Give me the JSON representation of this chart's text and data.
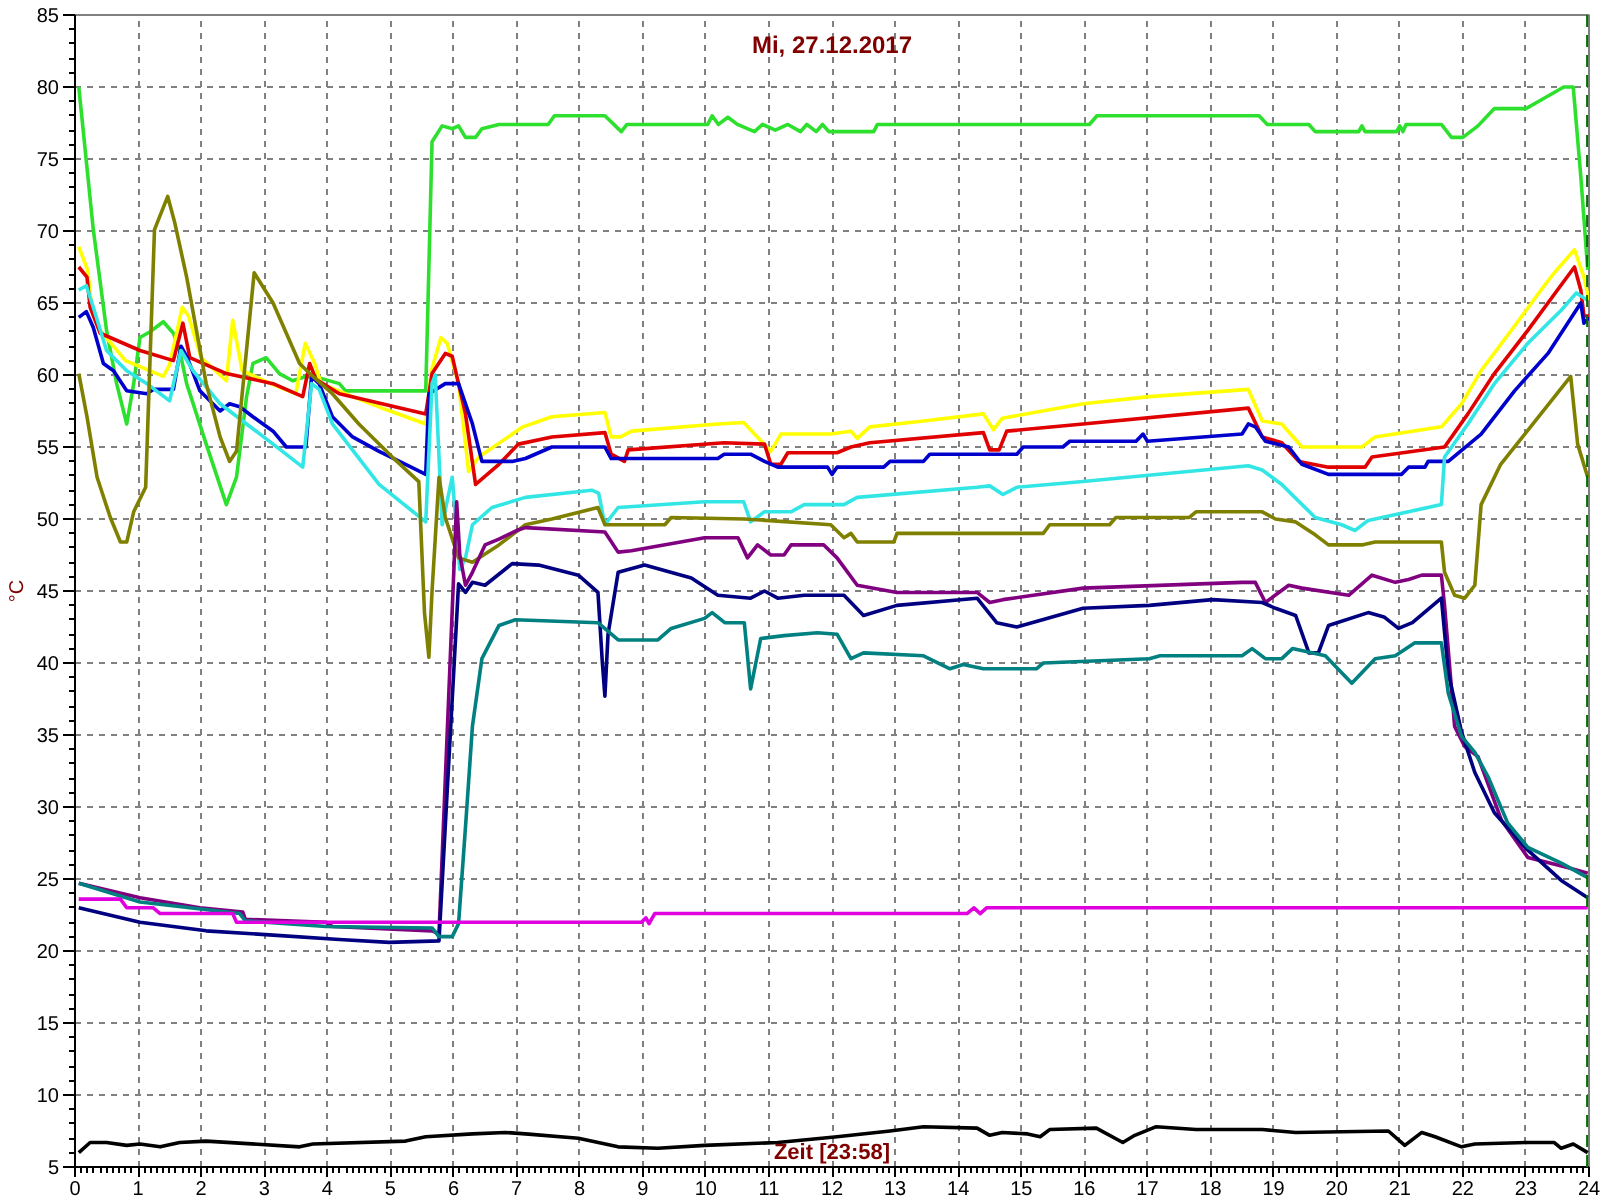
{
  "chart_data": {
    "type": "line",
    "title": "Mi, 27.12.2017",
    "xlabel": "Zeit [23:58]",
    "ylabel": "°C",
    "xlim": [
      0,
      24
    ],
    "ylim": [
      5,
      85
    ],
    "xticks": [
      0,
      1,
      2,
      3,
      4,
      5,
      6,
      7,
      8,
      9,
      10,
      11,
      12,
      13,
      14,
      15,
      16,
      17,
      18,
      19,
      20,
      21,
      22,
      23,
      24
    ],
    "yticks": [
      5,
      10,
      15,
      20,
      25,
      30,
      35,
      40,
      45,
      50,
      55,
      60,
      65,
      70,
      75,
      80,
      85
    ],
    "grid": true,
    "ref_lines": [
      {
        "axis": "x",
        "value": 23.97,
        "color": "#007000",
        "line_style": "dashed"
      }
    ],
    "series": [
      {
        "color": "#2ee02e",
        "x": [
          0.06,
          0.29,
          0.5,
          0.66,
          0.82,
          0.93,
          1.03,
          1.19,
          1.4,
          1.56,
          1.66,
          1.77,
          2.08,
          2.4,
          2.56,
          2.72,
          2.82,
          3.03,
          3.24,
          3.45,
          3.66,
          3.87,
          4.19,
          4.29,
          5.56,
          5.66,
          5.82,
          5.98,
          6.08,
          6.19,
          6.35,
          6.45,
          6.72,
          7.5,
          7.6,
          8.4,
          8.66,
          8.75,
          10.03,
          10.1,
          10.2,
          10.35,
          10.5,
          10.77,
          10.9,
          11.1,
          11.3,
          11.5,
          11.6,
          11.75,
          11.85,
          11.95,
          12.66,
          12.72,
          16.08,
          16.2,
          18.77,
          18.9,
          19.56,
          19.66,
          20.35,
          20.4,
          20.45,
          20.95,
          21.0,
          21.05,
          21.1,
          21.66,
          21.82,
          22.0,
          22.24,
          22.5,
          23.0,
          23.24,
          23.6,
          23.75,
          23.87,
          23.98
        ],
        "values": [
          80,
          70.1,
          63.1,
          59.4,
          56.6,
          59.4,
          62.6,
          63,
          63.7,
          62.9,
          61.7,
          59.4,
          55.2,
          51,
          52.9,
          58.5,
          60.8,
          61.2,
          60.1,
          59.6,
          59.9,
          59.8,
          59.4,
          58.9,
          58.9,
          76.2,
          77.3,
          77.1,
          77.3,
          76.5,
          76.5,
          77.1,
          77.4,
          77.4,
          78,
          78,
          76.9,
          77.4,
          77.4,
          78,
          77.4,
          77.9,
          77.4,
          76.9,
          77.4,
          77,
          77.4,
          76.9,
          77.4,
          76.9,
          77.4,
          76.9,
          76.9,
          77.4,
          77.4,
          78,
          78,
          77.4,
          77.4,
          76.9,
          76.9,
          77.3,
          76.9,
          76.9,
          77.3,
          76.9,
          77.4,
          77.4,
          76.5,
          76.5,
          77.3,
          78.5,
          78.5,
          79.1,
          80,
          80,
          73.8,
          67.3
        ]
      },
      {
        "color": "#ffff00",
        "x": [
          0.06,
          0.2,
          0.27,
          0.4,
          0.8,
          1.4,
          1.5,
          1.7,
          1.8,
          2.0,
          2.4,
          2.5,
          2.65,
          3.1,
          3.5,
          3.65,
          3.8,
          3.9,
          4.4,
          4.93,
          5.56,
          5.65,
          5.8,
          5.9,
          6.08,
          6.24,
          6.4,
          6.7,
          7.1,
          7.56,
          8.4,
          8.5,
          8.65,
          8.82,
          10.19,
          10.6,
          11.03,
          11.19,
          11.98,
          12.3,
          12.4,
          12.6,
          13.45,
          14.4,
          14.56,
          14.7,
          15.98,
          17.03,
          18.6,
          18.82,
          19.13,
          19.45,
          20.4,
          20.61,
          21.66,
          21.98,
          22.29,
          22.82,
          23.24,
          23.45,
          23.77,
          23.92,
          24.0
        ],
        "values": [
          68.9,
          67.3,
          64.5,
          63.1,
          61,
          59.9,
          60.7,
          64.7,
          64.1,
          61.2,
          59.6,
          63.8,
          60.3,
          59.4,
          58.7,
          62.2,
          60.8,
          59.4,
          58.5,
          57.6,
          56.6,
          60.3,
          62.6,
          62.2,
          59.4,
          53.3,
          54.3,
          55.2,
          56.4,
          57.1,
          57.4,
          55.7,
          55.7,
          56.1,
          56.6,
          56.7,
          54.7,
          55.9,
          55.9,
          56.1,
          55.6,
          56.4,
          56.8,
          57.3,
          56.2,
          57,
          58,
          58.5,
          59,
          56.8,
          56.6,
          55,
          55,
          55.7,
          56.4,
          58,
          60.3,
          63.4,
          65.9,
          67.1,
          68.7,
          66.8,
          65.2
        ]
      },
      {
        "color": "#e00000",
        "x": [
          0.06,
          0.19,
          0.24,
          0.4,
          1.03,
          1.56,
          1.71,
          1.82,
          2.4,
          3.14,
          3.61,
          3.72,
          3.82,
          4.19,
          5.56,
          5.66,
          5.87,
          5.98,
          6.19,
          6.35,
          6.72,
          7.03,
          7.56,
          8.4,
          8.5,
          8.71,
          8.77,
          10.29,
          10.93,
          11.03,
          11.19,
          11.3,
          12.08,
          12.3,
          12.6,
          14.4,
          14.5,
          14.65,
          14.77,
          15.98,
          18.6,
          18.82,
          19.13,
          19.4,
          19.87,
          20.45,
          20.56,
          21.71,
          22.08,
          22.5,
          23.03,
          23.5,
          23.77,
          23.87,
          23.92,
          24.0
        ],
        "values": [
          67.5,
          66.8,
          64.7,
          62.9,
          61.7,
          61,
          63.6,
          61.2,
          60.1,
          59.4,
          58.5,
          60.8,
          59.7,
          58.7,
          57.3,
          60.1,
          61.5,
          61.3,
          57.3,
          52.4,
          53.8,
          55.2,
          55.7,
          56,
          54.5,
          54,
          54.8,
          55.3,
          55.2,
          53.8,
          53.8,
          54.6,
          54.6,
          55,
          55.3,
          56,
          54.8,
          54.8,
          56.1,
          56.6,
          57.7,
          55.7,
          55.3,
          54,
          53.6,
          53.6,
          54.3,
          55,
          57.3,
          60.1,
          63.1,
          65.9,
          67.5,
          65.9,
          64.1,
          64.1
        ]
      },
      {
        "color": "#0000cc",
        "x": [
          0.06,
          0.18,
          0.29,
          0.45,
          0.61,
          0.82,
          1.14,
          1.24,
          1.56,
          1.68,
          1.78,
          1.98,
          2.3,
          2.45,
          2.61,
          2.82,
          3.14,
          3.35,
          3.66,
          3.75,
          3.87,
          4.08,
          4.4,
          4.82,
          5.24,
          5.56,
          5.61,
          5.87,
          6.08,
          6.3,
          6.45,
          6.93,
          7.14,
          7.56,
          8.4,
          8.5,
          10.19,
          10.29,
          10.71,
          10.93,
          11.14,
          11.93,
          12.0,
          12.08,
          12.82,
          12.92,
          13.45,
          13.55,
          14.93,
          15.03,
          15.66,
          15.77,
          16.82,
          16.93,
          17.0,
          18.5,
          18.6,
          18.71,
          18.87,
          19.24,
          19.45,
          19.87,
          21.03,
          21.14,
          21.4,
          21.45,
          21.77,
          22.29,
          22.82,
          23.35,
          23.87,
          23.92,
          24.0
        ],
        "values": [
          64,
          64.4,
          63.3,
          60.8,
          60.3,
          58.9,
          58.7,
          59,
          59,
          62,
          61.2,
          58.9,
          57.5,
          58,
          57.8,
          57.1,
          56.1,
          55,
          55,
          59.9,
          59.4,
          57.1,
          55.7,
          54.7,
          53.8,
          53.1,
          58.7,
          59.4,
          59.4,
          56.6,
          54,
          54,
          54.2,
          55,
          55,
          54.2,
          54.2,
          54.5,
          54.5,
          54,
          53.6,
          53.6,
          53.1,
          53.6,
          53.6,
          54,
          54,
          54.5,
          54.5,
          55,
          55,
          55.4,
          55.4,
          55.9,
          55.4,
          55.9,
          56.6,
          56.4,
          55.4,
          55,
          53.8,
          53.1,
          53.1,
          53.6,
          53.6,
          54,
          54,
          55.9,
          58.9,
          61.5,
          65,
          63.6,
          64
        ]
      },
      {
        "color": "#33e6e6",
        "x": [
          0.06,
          0.18,
          0.29,
          0.5,
          0.82,
          1.14,
          1.5,
          1.68,
          1.87,
          2.3,
          2.72,
          3.14,
          3.61,
          3.75,
          3.87,
          4.08,
          4.82,
          5.56,
          5.66,
          5.71,
          5.82,
          5.98,
          6.1,
          6.19,
          6.3,
          6.61,
          7.14,
          8.19,
          8.3,
          8.4,
          8.61,
          9.98,
          10.6,
          10.71,
          10.93,
          11.35,
          11.56,
          12.19,
          12.4,
          14.3,
          14.5,
          14.71,
          14.93,
          15.98,
          18.6,
          18.82,
          19.13,
          19.66,
          20.08,
          20.29,
          20.5,
          21.66,
          21.71,
          22.08,
          22.5,
          23.03,
          23.56,
          23.8,
          23.97
        ],
        "values": [
          65.9,
          66.2,
          64.7,
          61.7,
          60.3,
          59.4,
          58.2,
          61.7,
          60.3,
          58,
          56.6,
          55.2,
          53.6,
          59.4,
          59,
          56.6,
          52.4,
          49.8,
          59.4,
          60,
          49.6,
          52.9,
          46.5,
          47.3,
          49.6,
          50.8,
          51.5,
          52,
          51.8,
          49.6,
          50.8,
          51.2,
          51.2,
          49.8,
          50.5,
          50.5,
          51,
          51,
          51.5,
          52.2,
          52.3,
          51.7,
          52.2,
          52.6,
          53.7,
          53.4,
          52.4,
          50.1,
          49.6,
          49.2,
          49.9,
          51,
          54.3,
          56.6,
          59.4,
          62.2,
          64.5,
          65.7,
          65.2
        ]
      },
      {
        "color": "#808000",
        "x": [
          0.06,
          0.19,
          0.35,
          0.56,
          0.72,
          0.82,
          0.93,
          1.12,
          1.26,
          1.47,
          1.58,
          1.77,
          2.08,
          2.3,
          2.45,
          2.56,
          2.84,
          3.14,
          3.56,
          3.77,
          4.08,
          4.5,
          5.03,
          5.45,
          5.54,
          5.61,
          5.66,
          5.77,
          5.87,
          6.08,
          6.3,
          6.72,
          7.14,
          7.56,
          8.29,
          8.4,
          9.35,
          9.45,
          10.61,
          11.98,
          12.19,
          12.3,
          12.4,
          12.98,
          13.03,
          15.35,
          15.45,
          16.4,
          16.5,
          17.66,
          17.77,
          18.82,
          19.03,
          19.35,
          19.66,
          19.87,
          20.4,
          20.61,
          21.66,
          21.71,
          21.87,
          22.03,
          22.19,
          22.29,
          22.6,
          23.71,
          23.82,
          23.98
        ],
        "values": [
          60.1,
          57.1,
          52.9,
          50.1,
          48.4,
          48.4,
          50.5,
          52.2,
          70.1,
          72.4,
          70.6,
          66.8,
          59.4,
          55.7,
          54,
          54.7,
          67.1,
          65,
          60.8,
          59.9,
          58.7,
          56.6,
          54.3,
          52.6,
          43.5,
          40.4,
          45,
          52.9,
          50.1,
          47.3,
          47,
          48.2,
          49.6,
          50,
          50.8,
          49.6,
          49.6,
          50.1,
          50,
          49.6,
          48.7,
          49,
          48.4,
          48.4,
          49,
          49,
          49.6,
          49.6,
          50.1,
          50.1,
          50.5,
          50.5,
          50,
          49.8,
          48.9,
          48.2,
          48.2,
          48.4,
          48.4,
          46.3,
          44.7,
          44.5,
          45.4,
          51,
          53.8,
          59.9,
          55.2,
          52.9
        ]
      },
      {
        "color": "#800080",
        "x": [
          0.06,
          1.03,
          1.98,
          2.66,
          2.7,
          3.98,
          4.08,
          5.66,
          5.77,
          6.05,
          6.1,
          6.19,
          6.3,
          6.5,
          6.72,
          7.0,
          7.14,
          8.4,
          8.61,
          8.82,
          9.98,
          10.51,
          10.66,
          10.82,
          11.03,
          11.24,
          11.35,
          11.87,
          12.08,
          12.4,
          13.03,
          14.3,
          14.5,
          14.71,
          15.98,
          18.5,
          18.71,
          18.87,
          19.24,
          19.45,
          20.19,
          20.56,
          20.93,
          21.14,
          21.35,
          21.66,
          21.71,
          21.87,
          22.03,
          22.24,
          22.61,
          23.03,
          23.66,
          23.98
        ],
        "values": [
          24.7,
          23.7,
          23,
          22.7,
          22.2,
          22,
          21.7,
          21.4,
          21.2,
          51.2,
          47.5,
          45.4,
          46.3,
          48.2,
          48.6,
          49.2,
          49.4,
          49.1,
          47.7,
          47.8,
          48.7,
          48.7,
          47.3,
          48.2,
          47.5,
          47.5,
          48.2,
          48.2,
          47.3,
          45.4,
          44.9,
          44.9,
          44.2,
          44.4,
          45.2,
          45.6,
          45.6,
          44.2,
          45.4,
          45.2,
          44.7,
          46.1,
          45.6,
          45.8,
          46.1,
          46.1,
          44,
          35.6,
          34.2,
          33.5,
          29.1,
          26.5,
          25.8,
          25.4
        ]
      },
      {
        "color": "#000080",
        "x": [
          0.06,
          1.03,
          2.08,
          3.14,
          4.19,
          4.98,
          5.77,
          6.08,
          6.19,
          6.3,
          6.5,
          6.93,
          7.35,
          7.98,
          8.29,
          8.36,
          8.4,
          8.45,
          8.61,
          9.03,
          9.77,
          10.19,
          10.71,
          10.93,
          11.14,
          11.56,
          12.19,
          12.5,
          13.03,
          14.3,
          14.61,
          14.93,
          15.98,
          17.03,
          18.03,
          18.82,
          19.03,
          19.35,
          19.56,
          19.71,
          19.87,
          20.5,
          20.75,
          20.98,
          21.2,
          21.66,
          21.77,
          21.98,
          22.19,
          22.5,
          23.03,
          23.56,
          23.98
        ],
        "values": [
          23,
          22,
          21.4,
          21.1,
          20.8,
          20.6,
          20.7,
          45.5,
          44.9,
          45.6,
          45.4,
          46.9,
          46.8,
          46.1,
          44.9,
          40,
          37.7,
          42,
          46.3,
          46.8,
          45.9,
          44.7,
          44.5,
          45,
          44.5,
          44.7,
          44.7,
          43.3,
          44,
          44.5,
          42.8,
          42.5,
          43.8,
          44,
          44.4,
          44.2,
          43.8,
          43.3,
          40.7,
          40.7,
          42.6,
          43.5,
          43.2,
          42.4,
          42.8,
          44.5,
          39.3,
          35.2,
          32.4,
          29.6,
          27,
          24.9,
          23.7
        ]
      },
      {
        "color": "#008080",
        "x": [
          0.06,
          1.03,
          2.61,
          2.7,
          3.98,
          5.66,
          5.77,
          5.98,
          6.08,
          6.19,
          6.3,
          6.45,
          6.72,
          6.98,
          8.29,
          8.61,
          9.24,
          9.45,
          9.98,
          10.1,
          10.3,
          10.61,
          10.71,
          10.87,
          11.24,
          11.77,
          12.08,
          12.3,
          12.5,
          13.45,
          13.87,
          14.08,
          14.4,
          15.24,
          15.35,
          17.03,
          17.2,
          18.5,
          18.66,
          18.87,
          19.13,
          19.3,
          19.82,
          20.24,
          20.61,
          20.93,
          21.24,
          21.66,
          21.77,
          21.98,
          22.19,
          22.4,
          22.71,
          23.03,
          23.56,
          23.98
        ],
        "values": [
          24.7,
          23.4,
          22.6,
          22.1,
          21.7,
          21.6,
          21,
          21,
          21.9,
          28.6,
          35.6,
          40.3,
          42.6,
          43,
          42.8,
          41.6,
          41.6,
          42.4,
          43.1,
          43.5,
          42.8,
          42.8,
          38.2,
          41.7,
          41.9,
          42.1,
          42,
          40.3,
          40.7,
          40.5,
          39.6,
          39.9,
          39.6,
          39.6,
          40,
          40.3,
          40.5,
          40.5,
          41,
          40.3,
          40.3,
          41,
          40.5,
          38.6,
          40.3,
          40.5,
          41.4,
          41.4,
          37.9,
          34.9,
          33.8,
          32.1,
          28.9,
          27.2,
          26.1,
          25.1
        ]
      },
      {
        "color": "#e000e0",
        "x": [
          0.06,
          0.72,
          0.82,
          1.24,
          1.35,
          2.5,
          2.56,
          8.98,
          9.05,
          9.1,
          9.19,
          14.14,
          14.25,
          14.35,
          14.45,
          23.98
        ],
        "values": [
          23.6,
          23.6,
          23,
          23,
          22.6,
          22.6,
          22,
          22,
          22.3,
          21.9,
          22.6,
          22.6,
          23,
          22.6,
          23,
          23
        ]
      },
      {
        "color": "#000000",
        "x": [
          0.06,
          0.24,
          0.5,
          0.82,
          1.03,
          1.35,
          1.66,
          2.08,
          3.56,
          3.77,
          5.24,
          5.56,
          6.3,
          6.82,
          7.14,
          7.98,
          8.61,
          9.24,
          9.98,
          11.14,
          12.08,
          12.92,
          13.45,
          14.3,
          14.5,
          14.7,
          15.1,
          15.3,
          15.45,
          16.19,
          16.61,
          16.8,
          17.14,
          17.77,
          18.82,
          19.35,
          20.82,
          21.08,
          21.35,
          21.56,
          21.98,
          22.19,
          23.03,
          23.45,
          23.56,
          23.75,
          23.98
        ],
        "values": [
          6,
          6.7,
          6.7,
          6.5,
          6.6,
          6.4,
          6.7,
          6.8,
          6.4,
          6.6,
          6.8,
          7.1,
          7.3,
          7.4,
          7.3,
          7,
          6.4,
          6.3,
          6.5,
          6.7,
          7.1,
          7.5,
          7.8,
          7.7,
          7.2,
          7.4,
          7.3,
          7.1,
          7.6,
          7.7,
          6.7,
          7.2,
          7.8,
          7.6,
          7.6,
          7.4,
          7.5,
          6.5,
          7.4,
          7.1,
          6.4,
          6.6,
          6.7,
          6.7,
          6.3,
          6.6,
          6
        ]
      }
    ]
  }
}
